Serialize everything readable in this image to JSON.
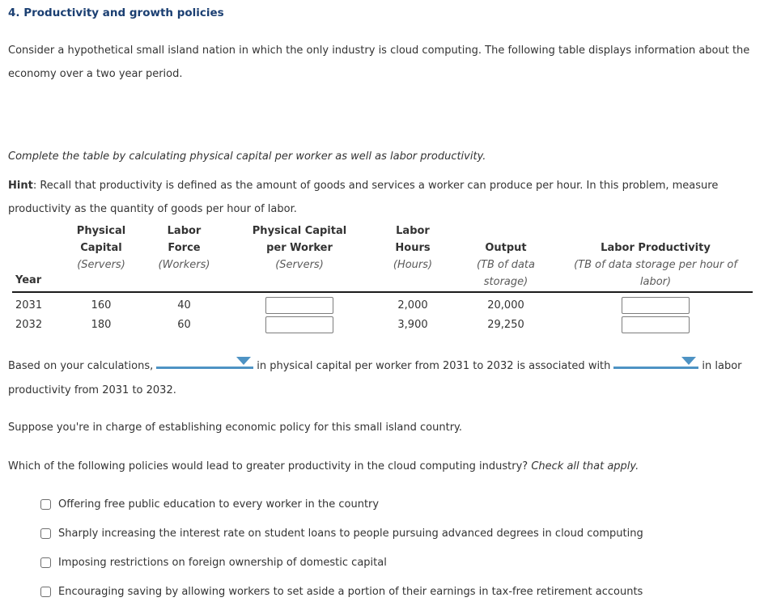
{
  "page": {
    "title": "4. Productivity and growth policies",
    "intro": "Consider a hypothetical small island nation in which the only industry is cloud computing. The following table displays information about the economy over a two year period.",
    "instruction": "Complete the table by calculating physical capital per worker as well as labor productivity.",
    "hint_label": "Hint",
    "hint_text": ": Recall that productivity is defined as the amount of goods and services a worker can produce per hour. In this problem, measure productivity as the quantity of goods per hour of labor."
  },
  "table": {
    "year_header": "Year",
    "columns": [
      {
        "label": "Physical Capital",
        "unit": "(Servers)"
      },
      {
        "label": "Labor Force",
        "unit": "(Workers)"
      },
      {
        "label": "Physical Capital per Worker",
        "unit": "(Servers)"
      },
      {
        "label": "Labor Hours",
        "unit": "(Hours)"
      },
      {
        "label": "Output",
        "unit": "(TB of data storage)"
      },
      {
        "label": "Labor Productivity",
        "unit": "(TB of data storage per hour of labor)"
      }
    ],
    "rows": [
      {
        "year": "2031",
        "physical_capital": "160",
        "labor_force": "40",
        "capital_per_worker": "",
        "labor_hours": "2,000",
        "output": "20,000",
        "labor_productivity": ""
      },
      {
        "year": "2032",
        "physical_capital": "180",
        "labor_force": "60",
        "capital_per_worker": "",
        "labor_hours": "3,900",
        "output": "29,250",
        "labor_productivity": ""
      }
    ]
  },
  "fill_in": {
    "part1": "Based on your calculations,",
    "part2": "in physical capital per worker from 2031 to 2032 is associated with",
    "part3": "in labor productivity from 2031 to 2032.",
    "dropdown1_value": "",
    "dropdown2_value": ""
  },
  "policy": {
    "setup": "Suppose you're in charge of establishing economic policy for this small island country.",
    "question": "Which of the following policies would lead to greater productivity in the cloud computing industry?",
    "question_emphasis": "Check all that apply.",
    "options": [
      {
        "label": "Offering free public education to every worker in the country",
        "checked": false
      },
      {
        "label": "Sharply increasing the interest rate on student loans to people pursuing advanced degrees in cloud computing",
        "checked": false
      },
      {
        "label": "Imposing restrictions on foreign ownership of domestic capital",
        "checked": false
      },
      {
        "label": "Encouraging saving by allowing workers to set aside a portion of their earnings in tax-free retirement accounts",
        "checked": false
      }
    ]
  },
  "colors": {
    "title_navy": "#1b3f72",
    "body_text": "#333333",
    "unit_gray": "#5a5a5a",
    "dropdown_blue": "#4e93c4"
  }
}
